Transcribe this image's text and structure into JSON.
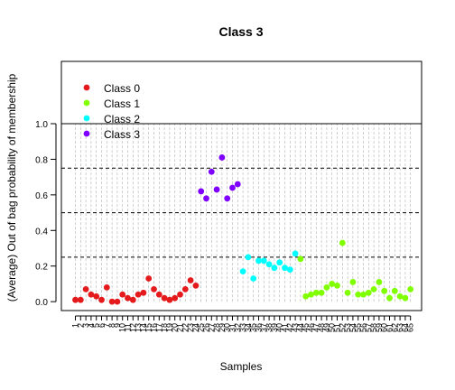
{
  "chart_data": {
    "type": "scatter",
    "title": "Class 3",
    "xlabel": "Samples",
    "ylabel": "(Average) Out of bag probability of membership",
    "ylim": [
      -0.05,
      1.35
    ],
    "yticks": [
      0.0,
      0.2,
      0.4,
      0.6,
      0.8,
      1.0
    ],
    "ytick_labels": [
      "0.0",
      "0.2",
      "0.4",
      "0.6",
      "0.8",
      "1.0"
    ],
    "reference_lines": [
      {
        "y": 1.0,
        "style": "solid"
      },
      {
        "y": 0.75,
        "style": "dashed"
      },
      {
        "y": 0.5,
        "style": "dashed"
      },
      {
        "y": 0.25,
        "style": "dashed"
      }
    ],
    "x_tick_labels": [
      "1",
      "2",
      "3",
      "4",
      "5",
      "6",
      "7",
      "8",
      "9",
      "10",
      "11",
      "12",
      "13",
      "14",
      "15",
      "16",
      "17",
      "18",
      "19",
      "20",
      "21",
      "22",
      "23",
      "24",
      "25",
      "26",
      "27",
      "28",
      "29",
      "30",
      "31",
      "32",
      "33",
      "34",
      "35",
      "36",
      "37",
      "38",
      "39",
      "40",
      "41",
      "42",
      "43",
      "44",
      "45",
      "46",
      "47",
      "48",
      "49",
      "50",
      "51",
      "52",
      "53",
      "54",
      "55",
      "56",
      "57",
      "58",
      "59",
      "60",
      "61",
      "62",
      "63",
      "64",
      "65"
    ],
    "legend": {
      "position": "top-left",
      "entries": [
        {
          "label": "Class 0",
          "color": "#E41A1C"
        },
        {
          "label": "Class 1",
          "color": "#80FF00"
        },
        {
          "label": "Class 2",
          "color": "#00FFFF"
        },
        {
          "label": "Class 3",
          "color": "#7F00FF"
        }
      ]
    },
    "series": [
      {
        "name": "Class 0",
        "color": "#E41A1C",
        "x": [
          1,
          2,
          3,
          4,
          5,
          6,
          7,
          8,
          9,
          10,
          11,
          12,
          13,
          14,
          15,
          16,
          17,
          18,
          19,
          20,
          21,
          22,
          23,
          24
        ],
        "y": [
          0.01,
          0.01,
          0.07,
          0.04,
          0.03,
          0.01,
          0.08,
          0.0,
          0.0,
          0.04,
          0.02,
          0.01,
          0.04,
          0.05,
          0.13,
          0.07,
          0.04,
          0.02,
          0.01,
          0.02,
          0.04,
          0.07,
          0.12,
          0.09
        ]
      },
      {
        "name": "Class 3",
        "color": "#7F00FF",
        "x": [
          25,
          26,
          27,
          28,
          29,
          30,
          31,
          32
        ],
        "y": [
          0.62,
          0.58,
          0.73,
          0.63,
          0.81,
          0.58,
          0.64,
          0.66
        ]
      },
      {
        "name": "Class 2",
        "color": "#00FFFF",
        "x": [
          33,
          34,
          35,
          36,
          37,
          38,
          39,
          40,
          41,
          42,
          43
        ],
        "y": [
          0.17,
          0.25,
          0.13,
          0.23,
          0.23,
          0.21,
          0.19,
          0.22,
          0.19,
          0.18,
          0.27
        ]
      },
      {
        "name": "Class 1",
        "color": "#80FF00",
        "x": [
          44,
          45,
          46,
          47,
          48,
          49,
          50,
          51,
          52,
          53,
          54,
          55,
          56,
          57,
          58,
          59,
          60,
          61,
          62,
          63,
          64,
          65
        ],
        "y": [
          0.24,
          0.03,
          0.04,
          0.05,
          0.05,
          0.08,
          0.1,
          0.09,
          0.33,
          0.05,
          0.11,
          0.04,
          0.04,
          0.05,
          0.07,
          0.11,
          0.06,
          0.02,
          0.06,
          0.03,
          0.02,
          0.07
        ]
      }
    ]
  }
}
